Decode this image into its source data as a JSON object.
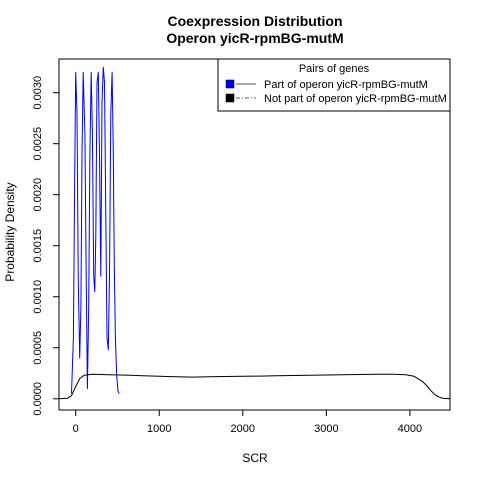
{
  "chart_data": {
    "type": "line",
    "title": "Coexpression Distribution",
    "subtitle": "Operon yicR-rpmBG-mutM",
    "xlabel": "SCR",
    "ylabel": "Probability Density",
    "xlim": [
      -200,
      4480
    ],
    "ylim": [
      -0.00011,
      0.00333
    ],
    "x_ticks": [
      0,
      1000,
      2000,
      3000,
      4000
    ],
    "y_ticks": [
      0.0,
      0.0005,
      0.001,
      0.0015,
      0.002,
      0.0025,
      0.003
    ],
    "y_tick_labels": [
      "0.0000",
      "0.0005",
      "0.0010",
      "0.0015",
      "0.0020",
      "0.0025",
      "0.0030"
    ],
    "legend": {
      "title": "Pairs of genes",
      "placement": "top-right"
    },
    "series": [
      {
        "name": "Part of operon yicR-rpmBG-mutM",
        "color": "#0000ff",
        "line_style": "solid",
        "x": [
          -50,
          -28,
          -12,
          0,
          15,
          30,
          48,
          62,
          75,
          90,
          110,
          125,
          140,
          155,
          170,
          185,
          200,
          215,
          228,
          240,
          255,
          270,
          285,
          300,
          315,
          330,
          345,
          360,
          375,
          390,
          405,
          420,
          435,
          450,
          462,
          475,
          490,
          505,
          520
        ],
        "y": [
          5e-05,
          0.0006,
          0.0022,
          0.0032,
          0.0028,
          0.0012,
          0.0004,
          0.0009,
          0.0024,
          0.0032,
          0.0026,
          0.0012,
          0.0001,
          0.0009,
          0.0024,
          0.0032,
          0.0026,
          0.0012,
          0.00105,
          0.0016,
          0.0031,
          0.0032,
          0.0024,
          0.0012,
          0.0029,
          0.00325,
          0.0031,
          0.0018,
          0.0006,
          0.00048,
          0.0012,
          0.0028,
          0.0032,
          0.0024,
          0.0013,
          0.0006,
          0.00025,
          8e-05,
          5e-05
        ]
      },
      {
        "name": "Not part of operon yicR-rpmBG-mutM",
        "color": "#000000",
        "line_style": "solid",
        "x": [
          -200,
          -100,
          -50,
          0,
          50,
          100,
          200,
          400,
          600,
          800,
          1000,
          1200,
          1400,
          1600,
          1800,
          2000,
          2200,
          2400,
          2600,
          2800,
          3000,
          3200,
          3400,
          3600,
          3800,
          3950,
          4050,
          4150,
          4200,
          4250,
          4300,
          4350,
          4400,
          4480
        ],
        "y": [
          0.0,
          5e-06,
          3e-05,
          0.00012,
          0.0002,
          0.00023,
          0.00024,
          0.000235,
          0.000232,
          0.000225,
          0.00022,
          0.000215,
          0.000212,
          0.000215,
          0.000218,
          0.00022,
          0.000222,
          0.000225,
          0.000228,
          0.00023,
          0.000233,
          0.000235,
          0.000238,
          0.00024,
          0.00024,
          0.000235,
          0.00022,
          0.00017,
          0.00013,
          8e-05,
          4e-05,
          1.5e-05,
          4e-06,
          0.0
        ]
      }
    ]
  }
}
